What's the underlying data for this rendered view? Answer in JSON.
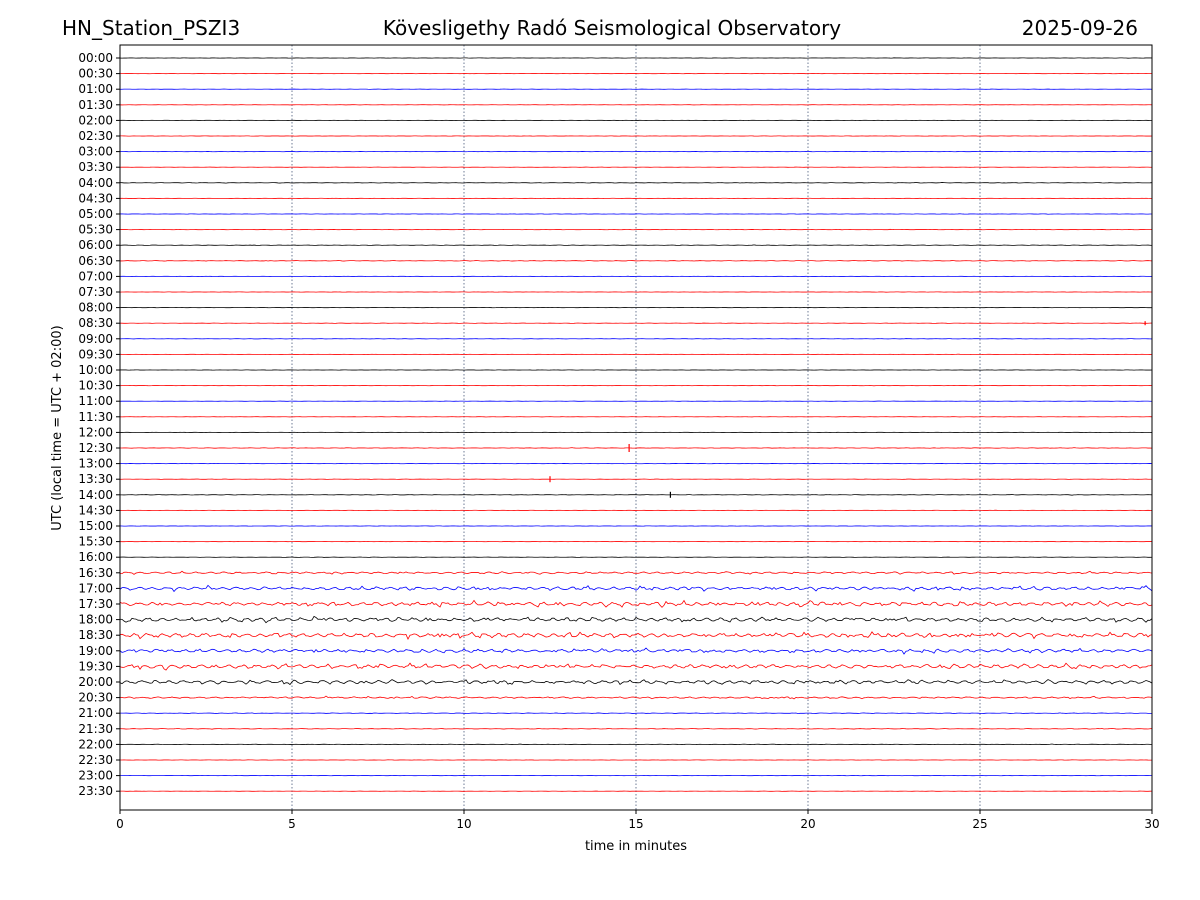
{
  "chart_data": {
    "type": "line",
    "title_left": "HN_Station_PSZI3",
    "title_center": "Kövesligethy Radó Seismological Observatory",
    "title_right": "2025-09-26",
    "xlabel": "time in minutes",
    "ylabel": "UTC (local time = UTC + 02:00)",
    "xlim": [
      0,
      30
    ],
    "x_ticks": [
      0,
      5,
      10,
      15,
      20,
      25,
      30
    ],
    "x_gridlines": [
      5,
      10,
      15,
      20,
      25
    ],
    "row_labels": [
      "00:00",
      "00:30",
      "01:00",
      "01:30",
      "02:00",
      "02:30",
      "03:00",
      "03:30",
      "04:00",
      "04:30",
      "05:00",
      "05:30",
      "06:00",
      "06:30",
      "07:00",
      "07:30",
      "08:00",
      "08:30",
      "09:00",
      "09:30",
      "10:00",
      "10:30",
      "11:00",
      "11:30",
      "12:00",
      "12:30",
      "13:00",
      "13:30",
      "14:00",
      "14:30",
      "15:00",
      "15:30",
      "16:00",
      "16:30",
      "17:00",
      "17:30",
      "18:00",
      "18:30",
      "19:00",
      "19:30",
      "20:00",
      "20:30",
      "21:00",
      "21:30",
      "22:00",
      "22:30",
      "23:00",
      "23:30"
    ],
    "trace_colors": [
      "#000000",
      "#ff0000",
      "#0000ff",
      "#ff0000"
    ],
    "row_activity": [
      0.05,
      0.05,
      0.05,
      0.05,
      0.05,
      0.05,
      0.06,
      0.05,
      0.08,
      0.06,
      0.06,
      0.06,
      0.08,
      0.1,
      0.06,
      0.05,
      0.05,
      0.06,
      0.06,
      0.05,
      0.05,
      0.05,
      0.05,
      0.05,
      0.05,
      0.08,
      0.06,
      0.06,
      0.08,
      0.06,
      0.05,
      0.05,
      0.06,
      0.35,
      0.6,
      0.7,
      0.7,
      0.75,
      0.6,
      0.7,
      0.6,
      0.3,
      0.1,
      0.1,
      0.08,
      0.06,
      0.05,
      0.05
    ],
    "events": [
      {
        "row": 25,
        "minute": 14.8,
        "size": 4
      },
      {
        "row": 27,
        "minute": 12.5,
        "size": 3
      },
      {
        "row": 28,
        "minute": 16.0,
        "size": 3
      },
      {
        "row": 17,
        "minute": 29.8,
        "size": 2
      }
    ]
  }
}
